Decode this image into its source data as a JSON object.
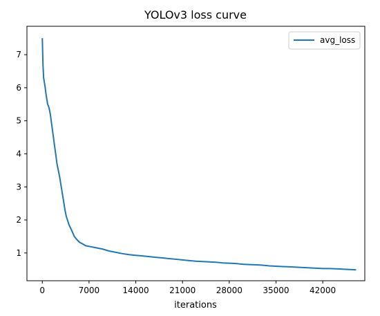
{
  "chart_data": {
    "type": "line",
    "title": "YOLOv3 loss curve",
    "xlabel": "iterations",
    "ylabel": "",
    "xlim": [
      -2300,
      48300
    ],
    "ylim": [
      0.16,
      7.86
    ],
    "xticks": [
      0,
      7000,
      14000,
      21000,
      28000,
      35000,
      42000
    ],
    "yticks": [
      1,
      2,
      3,
      4,
      5,
      6,
      7
    ],
    "grid": false,
    "legend_position": "top-right",
    "series": [
      {
        "name": "avg_loss",
        "color": "#1f77b4",
        "x": [
          0,
          100,
          200,
          400,
          600,
          800,
          1000,
          1200,
          1400,
          1600,
          1800,
          2000,
          2200,
          2400,
          2600,
          2800,
          3000,
          3200,
          3400,
          3600,
          3800,
          4000,
          4400,
          4800,
          5200,
          5600,
          6000,
          6500,
          7000,
          7500,
          8000,
          9000,
          10000,
          11000,
          12000,
          13000,
          14000,
          15000,
          16000,
          17000,
          18000,
          19000,
          20000,
          21000,
          22000,
          23000,
          24000,
          25000,
          26000,
          27000,
          28000,
          29000,
          30000,
          31000,
          32000,
          33000,
          34000,
          35000,
          36000,
          37000,
          38000,
          39000,
          40000,
          41000,
          42000,
          43000,
          44000,
          45000,
          46000,
          47000
        ],
        "y": [
          7.5,
          6.7,
          6.3,
          6.05,
          5.75,
          5.5,
          5.4,
          5.2,
          4.9,
          4.6,
          4.3,
          4.0,
          3.7,
          3.5,
          3.3,
          3.05,
          2.8,
          2.55,
          2.3,
          2.1,
          1.98,
          1.85,
          1.68,
          1.5,
          1.4,
          1.32,
          1.28,
          1.22,
          1.2,
          1.18,
          1.16,
          1.12,
          1.06,
          1.02,
          0.98,
          0.95,
          0.93,
          0.91,
          0.89,
          0.87,
          0.85,
          0.83,
          0.81,
          0.79,
          0.77,
          0.75,
          0.74,
          0.73,
          0.72,
          0.7,
          0.69,
          0.68,
          0.66,
          0.65,
          0.64,
          0.63,
          0.61,
          0.6,
          0.59,
          0.58,
          0.57,
          0.56,
          0.55,
          0.54,
          0.53,
          0.53,
          0.52,
          0.51,
          0.5,
          0.49
        ]
      }
    ]
  }
}
